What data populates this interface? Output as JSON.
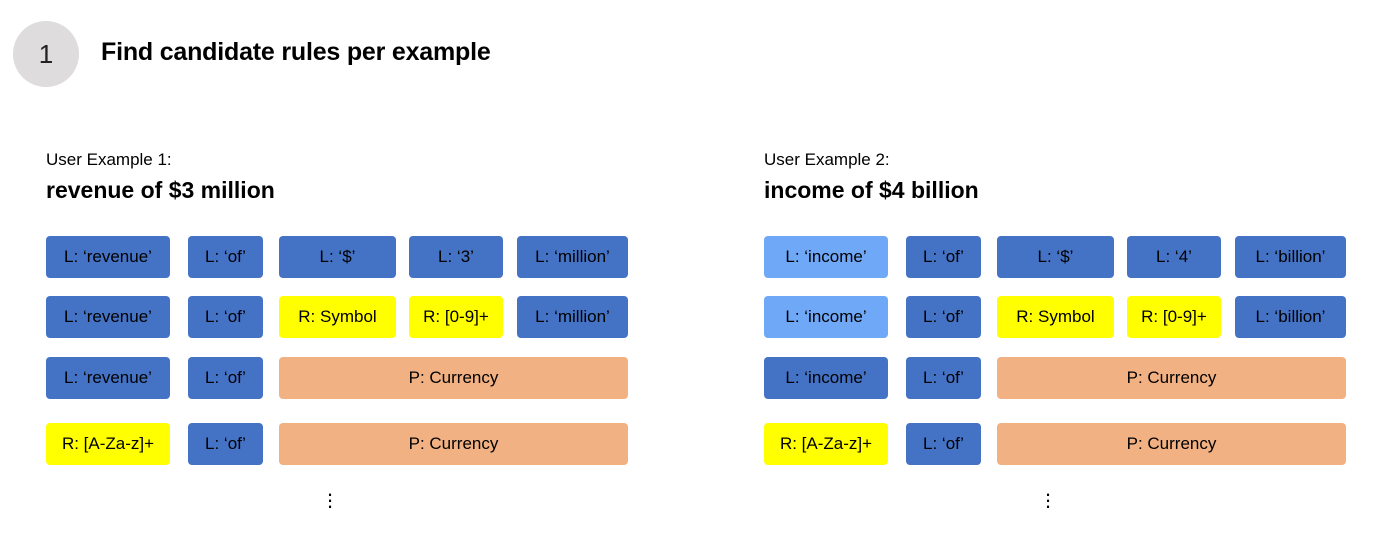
{
  "step": {
    "number": "1",
    "title": "Find candidate rules per example"
  },
  "examples": [
    {
      "label": "User Example 1:",
      "text": "revenue of $3 million",
      "rows": [
        [
          "L: ‘revenue’",
          "L: ‘of’",
          "L: ‘$’",
          "L: ‘3’",
          "L: ‘million’"
        ],
        [
          "L: ‘revenue’",
          "L: ‘of’",
          "R: Symbol",
          "R: [0-9]+",
          "L: ‘million’"
        ],
        [
          "L: ‘revenue’",
          "L: ‘of’",
          "P: Currency"
        ],
        [
          "R: [A-Za-z]+",
          "L: ‘of’",
          "P: Currency"
        ]
      ]
    },
    {
      "label": "User Example 2:",
      "text": "income of $4 billion",
      "rows": [
        [
          "L: ‘income’",
          "L: ‘of’",
          "L: ‘$’",
          "L: ‘4’",
          "L: ‘billion’"
        ],
        [
          "L: ‘income’",
          "L: ‘of’",
          "R: Symbol",
          "R: [0-9]+",
          "L: ‘billion’"
        ],
        [
          "L: ‘income’",
          "L: ‘of’",
          "P: Currency"
        ],
        [
          "R: [A-Za-z]+",
          "L: ‘of’",
          "P: Currency"
        ]
      ]
    }
  ],
  "colors": {
    "literal": "#4472c4",
    "literal_highlight": "#6fa8f6",
    "regex": "#ffff00",
    "pattern": "#f1b183",
    "badge": "#dedcdc"
  }
}
